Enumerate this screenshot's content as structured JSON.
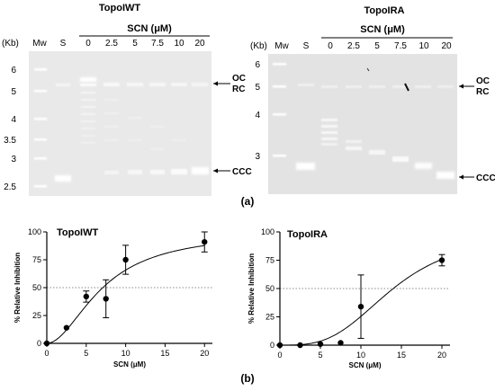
{
  "panel_a": {
    "label": "(a)",
    "gels": [
      {
        "title": "TopoIWT",
        "conc_header": "SCN (μM)",
        "kb_header": "(Kb)",
        "lanes": [
          "Mw",
          "S",
          "0",
          "2.5",
          "5",
          "7.5",
          "10",
          "20"
        ],
        "kb_ticks": [
          "6",
          "5",
          "4",
          "3.5",
          "3",
          "2.5"
        ],
        "right_labels": [
          "OC",
          "RC",
          "CCC"
        ]
      },
      {
        "title": "TopoIRA",
        "conc_header": "SCN (μM)",
        "kb_header": "(Kb)",
        "lanes": [
          "Mw",
          "S",
          "0",
          "2.5",
          "5",
          "7.5",
          "10",
          "20"
        ],
        "kb_ticks": [
          "6",
          "5",
          "4",
          "3"
        ],
        "right_labels": [
          "OC",
          "RC",
          "CCC"
        ]
      }
    ]
  },
  "panel_b": {
    "label": "(b)",
    "chart_data": [
      {
        "type": "scatter",
        "title": "TopoIWT",
        "xlabel": "SCN (μM)",
        "ylabel": "% Relative Inhibition",
        "xlim": [
          0,
          21
        ],
        "ylim": [
          0,
          100
        ],
        "xticks": [
          "0",
          "5",
          "10",
          "15",
          "20"
        ],
        "yticks": [
          "0",
          "25",
          "50",
          "75",
          "100"
        ],
        "reference_line": 50,
        "points": [
          {
            "x": 0,
            "y": 0,
            "err": 0
          },
          {
            "x": 2.5,
            "y": 14,
            "err": 0
          },
          {
            "x": 5,
            "y": 42,
            "err": 5
          },
          {
            "x": 7.5,
            "y": 40,
            "err": 17
          },
          {
            "x": 10,
            "y": 75,
            "err": 13
          },
          {
            "x": 20,
            "y": 91,
            "err": 9
          }
        ],
        "fit": {
          "top": 100,
          "ec50": 7.1,
          "hill": 1.9
        }
      },
      {
        "type": "scatter",
        "title": "TopoIRA",
        "xlabel": "SCN (μM)",
        "ylabel": "% Relative Inhibition",
        "xlim": [
          0,
          21
        ],
        "ylim": [
          0,
          100
        ],
        "xticks": [
          "0",
          "5",
          "10",
          "15",
          "20"
        ],
        "yticks": [
          "0",
          "25",
          "50",
          "75",
          "100"
        ],
        "reference_line": 50,
        "points": [
          {
            "x": 0,
            "y": 0,
            "err": 0
          },
          {
            "x": 2.5,
            "y": 0,
            "err": 0
          },
          {
            "x": 5,
            "y": 1,
            "err": 0
          },
          {
            "x": 7.5,
            "y": 2,
            "err": 0
          },
          {
            "x": 10,
            "y": 34,
            "err": 28
          },
          {
            "x": 20,
            "y": 75,
            "err": 5
          }
        ],
        "fit": {
          "top": 100,
          "ec50": 14,
          "hill": 3.2
        }
      }
    ]
  }
}
